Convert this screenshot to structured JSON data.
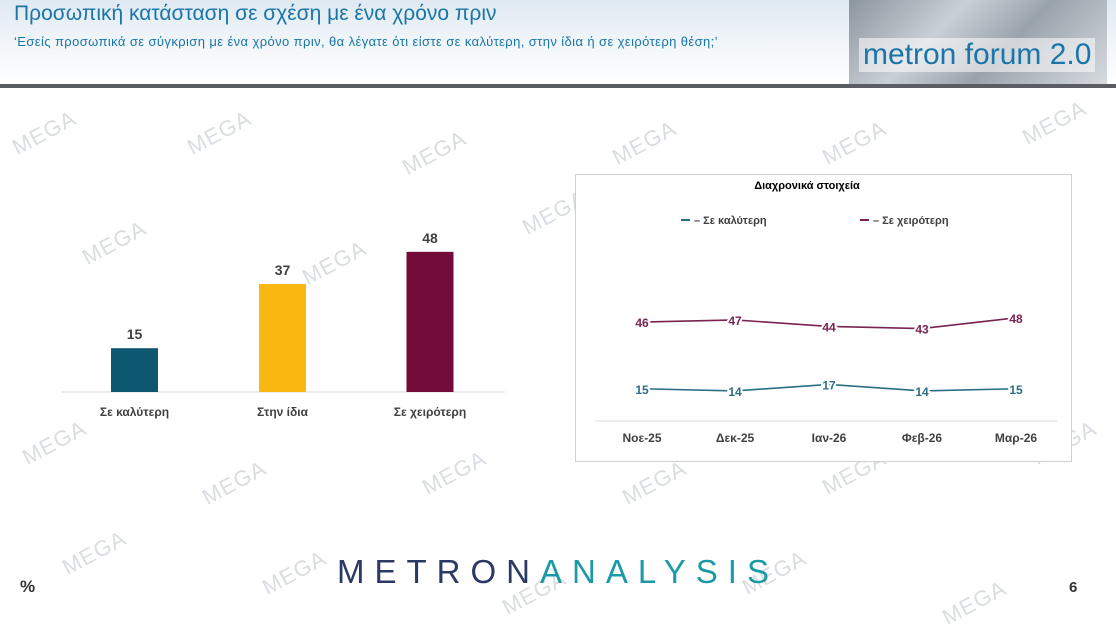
{
  "header": {
    "title": "Προσωπική κατάσταση σε σχέση με ένα χρόνο πριν",
    "subtitle": "‘Εσείς προσωπικά σε σύγκριση με ένα χρόνο πριν, θα λέγατε ότι είστε σε καλύτερη, στην ίδια ή σε χειρότερη θέση;’",
    "logo_text": "metron forum 2.0"
  },
  "watermark_text": "MEGA",
  "footer": {
    "brand_part1": "METRON",
    "brand_part2": "ANALYSIS",
    "unit": "%",
    "page_number": "6"
  },
  "chart_data": [
    {
      "type": "bar",
      "categories": [
        "Σε καλύτερη",
        "Στην ίδια",
        "Σε χειρότερη"
      ],
      "values": [
        15,
        37,
        48
      ],
      "colors": [
        "#0d5870",
        "#fbb813",
        "#730c3a"
      ],
      "ylim": [
        0,
        60
      ]
    },
    {
      "type": "line",
      "title": "Διαχρονικά στοιχεία",
      "categories": [
        "Νοε-25",
        "Δεκ-25",
        "Ιαν-26",
        "Φεβ-26",
        "Μαρ-26"
      ],
      "series": [
        {
          "name": "Σε καλύτερη",
          "values": [
            15,
            14,
            17,
            14,
            15
          ],
          "color": "#2a6e84"
        },
        {
          "name": "Σε χειρότερη",
          "values": [
            46,
            47,
            44,
            43,
            48
          ],
          "color": "#7a2351"
        }
      ],
      "ylim": [
        0,
        70
      ],
      "legend": "top"
    }
  ]
}
